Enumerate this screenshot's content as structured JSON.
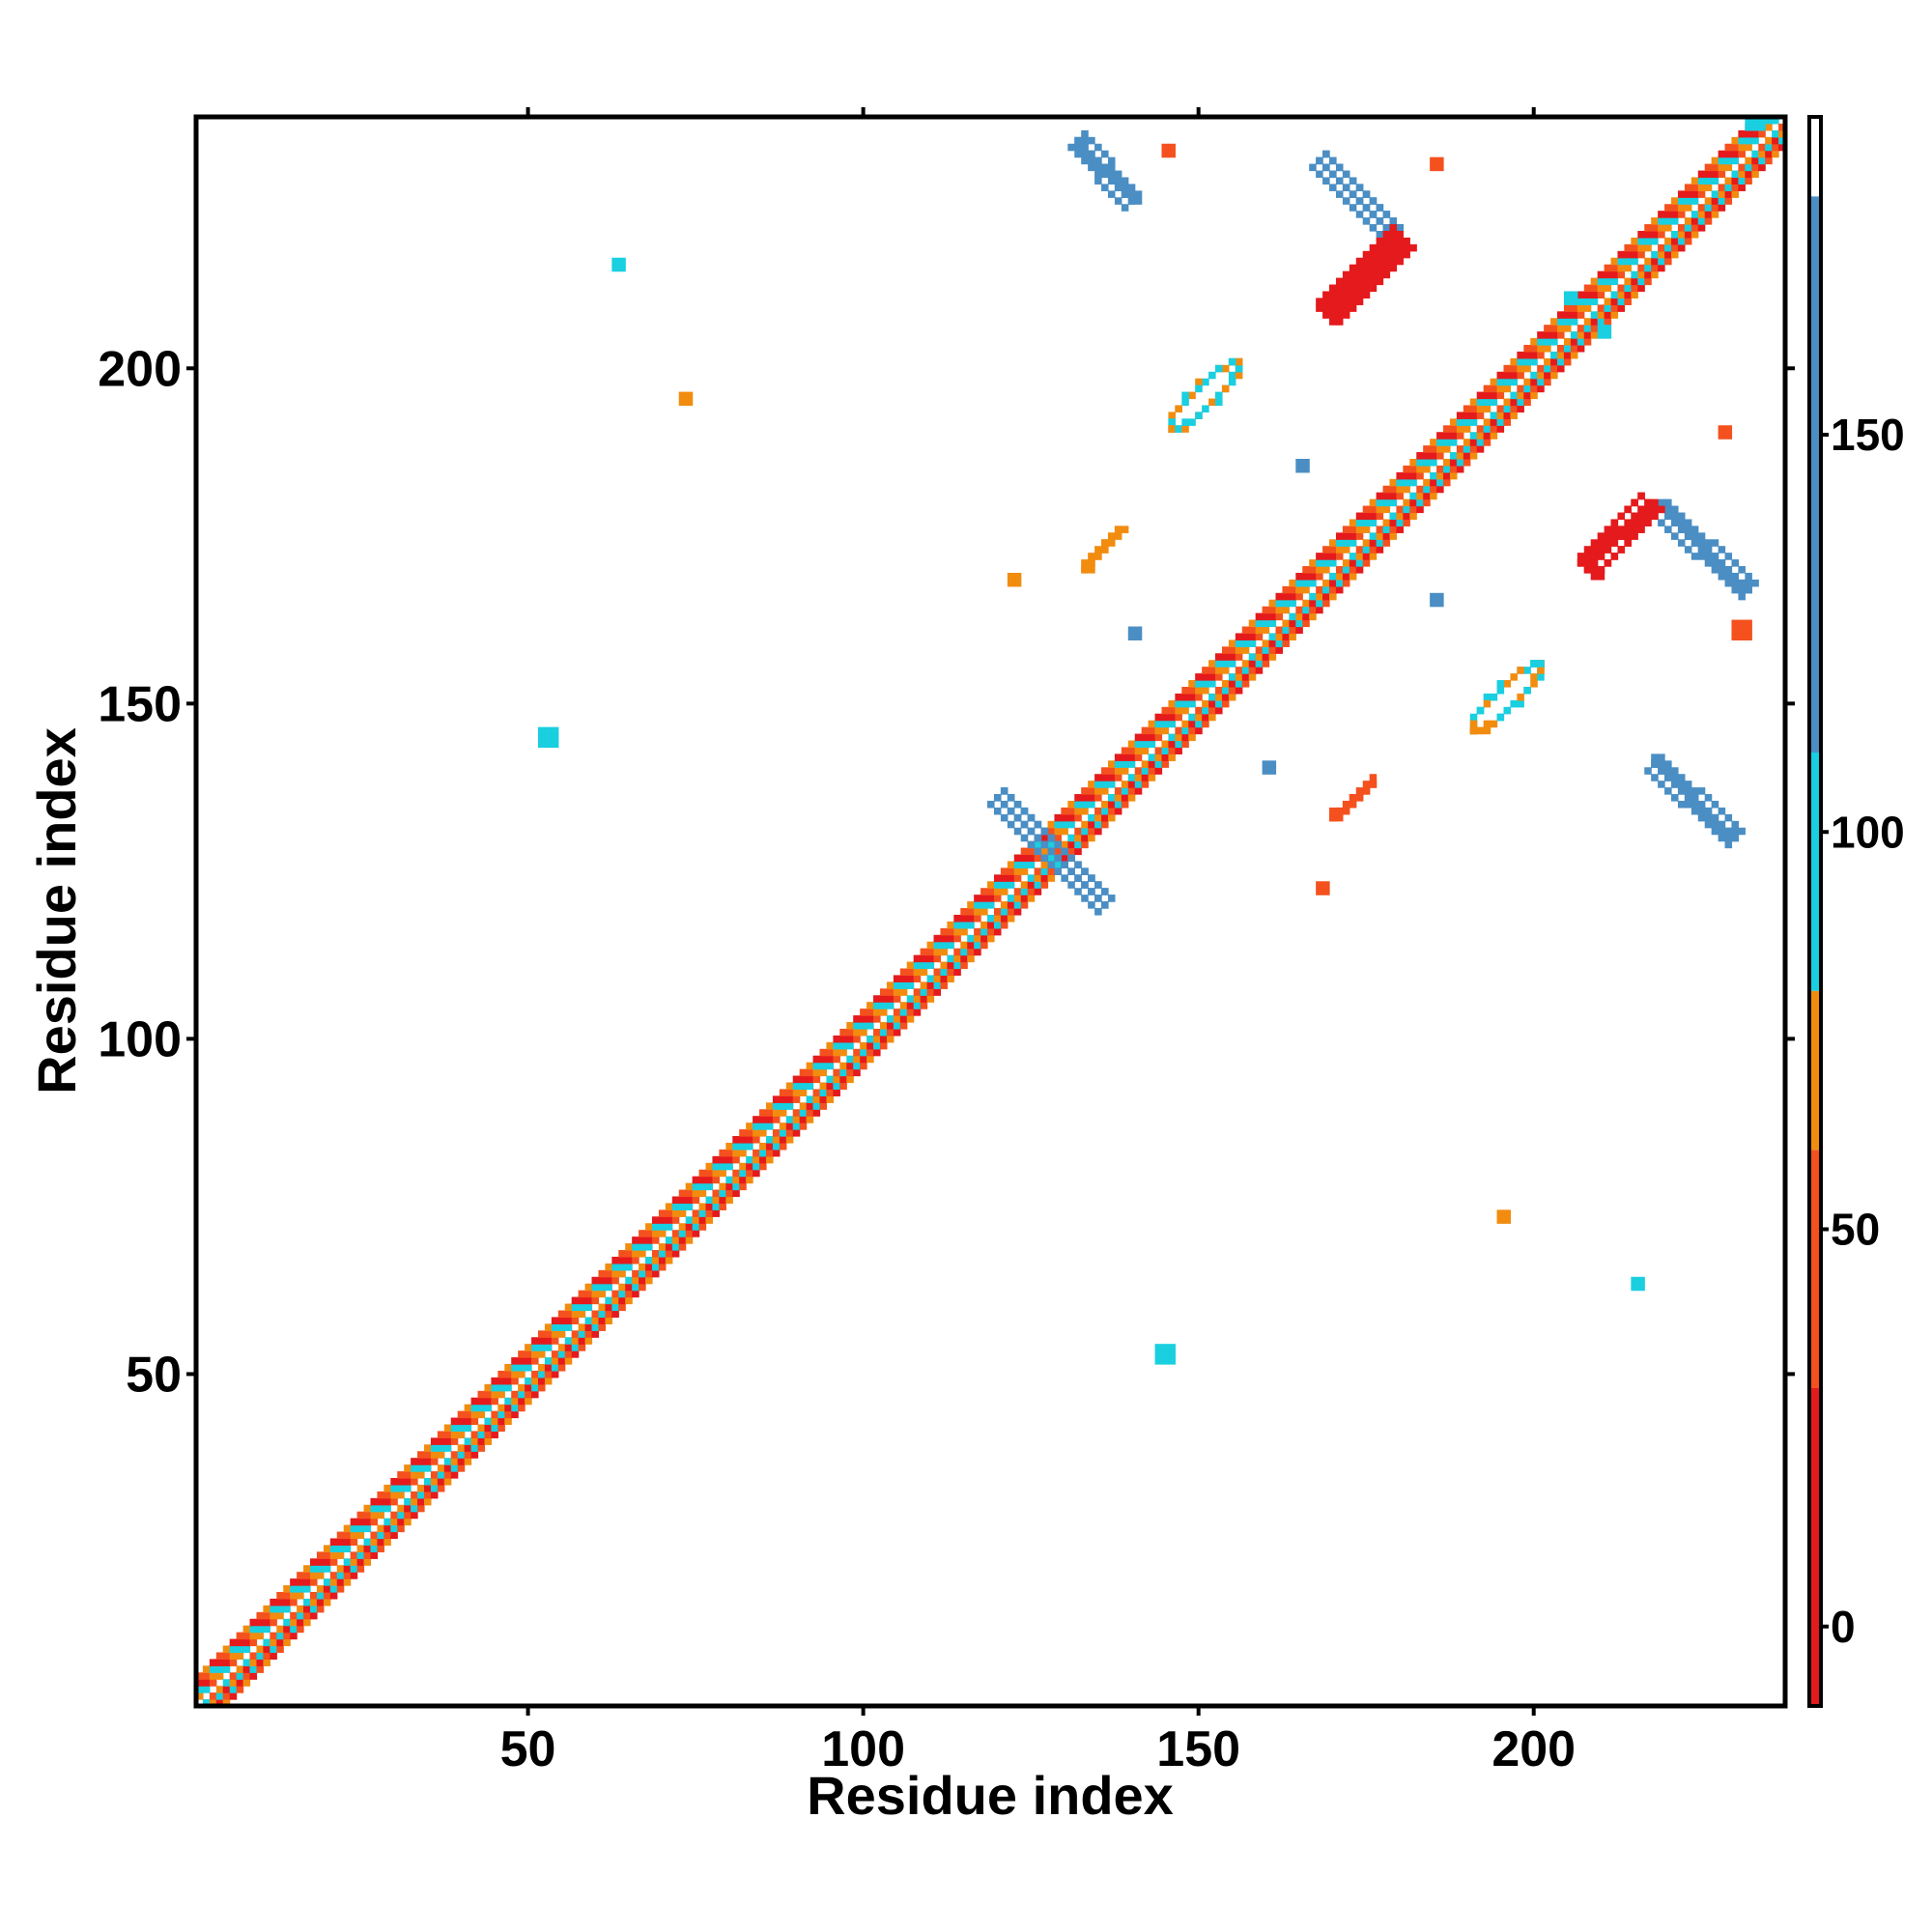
{
  "chart_data": {
    "type": "heatmap",
    "title": "",
    "xlabel": "Residue index",
    "ylabel": "Residue index",
    "xlim": [
      1,
      237
    ],
    "ylim": [
      1,
      237
    ],
    "x_ticks": [
      50,
      100,
      150,
      200
    ],
    "y_ticks": [
      50,
      100,
      150,
      200
    ],
    "grid": false,
    "legend": "colorbar right",
    "colorbar": {
      "range": [
        -10,
        190
      ],
      "ticks": [
        0,
        50,
        100,
        150
      ],
      "bins": [
        {
          "from": -10,
          "to": 30,
          "color": "#e41a1c"
        },
        {
          "from": 30,
          "to": 60,
          "color": "#f4511e"
        },
        {
          "from": 60,
          "to": 80,
          "color": "#f28c0f"
        },
        {
          "from": 80,
          "to": 110,
          "color": "#19cfe0"
        },
        {
          "from": 110,
          "to": 180,
          "color": "#4a8ec4"
        },
        {
          "from": 180,
          "to": 190,
          "color": "#ffffff"
        }
      ]
    },
    "features": [
      {
        "kind": "diagonal",
        "from": 1,
        "to": 237,
        "width": 4,
        "colors": [
          "#e41a1c",
          "#f4511e",
          "#f28c0f",
          "#19cfe0"
        ]
      },
      {
        "kind": "band",
        "from": [
          120,
          136
        ],
        "to": [
          136,
          120
        ],
        "width": 2.5,
        "color": "#4a8ec4"
      },
      {
        "kind": "band",
        "from": [
          132,
          234
        ],
        "to": [
          140,
          225
        ],
        "width": 2.5,
        "color": "#4a8ec4"
      },
      {
        "kind": "band",
        "from": [
          168,
          231
        ],
        "to": [
          179,
          220
        ],
        "width": 2.5,
        "color": "#4a8ec4"
      },
      {
        "kind": "band",
        "from": [
          219,
          179
        ],
        "to": [
          232,
          167
        ],
        "width": 2.5,
        "color": "#4a8ec4"
      },
      {
        "kind": "band",
        "from": [
          218,
          141
        ],
        "to": [
          230,
          130
        ],
        "width": 2.5,
        "color": "#4a8ec4"
      },
      {
        "kind": "band",
        "from": [
          169,
          208
        ],
        "to": [
          180,
          219
        ],
        "width": 3,
        "color": "#e41a1c"
      },
      {
        "kind": "band",
        "from": [
          208,
          170
        ],
        "to": [
          217,
          180
        ],
        "width": 3,
        "color": "#e41a1c"
      },
      {
        "kind": "band",
        "from": [
          170,
          133
        ],
        "to": [
          176,
          138
        ],
        "width": 1.5,
        "color": "#f4511e"
      },
      {
        "kind": "band",
        "from": [
          133,
          170
        ],
        "to": [
          138,
          176
        ],
        "width": 1.5,
        "color": "#f28c0f"
      },
      {
        "kind": "ring",
        "center": [
          151,
          196
        ],
        "width": 8,
        "color": "#f28c0f"
      },
      {
        "kind": "ring",
        "center": [
          196,
          151
        ],
        "width": 8,
        "color": "#f28c0f"
      },
      {
        "kind": "patch",
        "at": [
          52,
          144
        ],
        "size": 3,
        "color": "#19cfe0"
      },
      {
        "kind": "patch",
        "at": [
          144,
          52
        ],
        "size": 3,
        "color": "#19cfe0"
      },
      {
        "kind": "patch",
        "at": [
          63,
          215
        ],
        "size": 2,
        "color": "#19cfe0"
      },
      {
        "kind": "patch",
        "at": [
          215,
          63
        ],
        "size": 2,
        "color": "#19cfe0"
      },
      {
        "kind": "patch",
        "at": [
          73,
          195
        ],
        "size": 2,
        "color": "#f28c0f"
      },
      {
        "kind": "patch",
        "at": [
          195,
          73
        ],
        "size": 2,
        "color": "#f28c0f"
      },
      {
        "kind": "patch",
        "at": [
          122,
          168
        ],
        "size": 2,
        "color": "#f28c0f"
      },
      {
        "kind": "patch",
        "at": [
          168,
          122
        ],
        "size": 2,
        "color": "#f4511e"
      },
      {
        "kind": "patch",
        "at": [
          228,
          190
        ],
        "size": 2,
        "color": "#f4511e"
      },
      {
        "kind": "patch",
        "at": [
          230,
          160
        ],
        "size": 3,
        "color": "#f4511e"
      },
      {
        "kind": "patch",
        "at": [
          165,
          185
        ],
        "size": 2,
        "color": "#4a8ec4"
      },
      {
        "kind": "patch",
        "at": [
          185,
          165
        ],
        "size": 2,
        "color": "#4a8ec4"
      },
      {
        "kind": "patch",
        "at": [
          160,
          140
        ],
        "size": 2,
        "color": "#4a8ec4"
      },
      {
        "kind": "patch",
        "at": [
          140,
          160
        ],
        "size": 2,
        "color": "#4a8ec4"
      },
      {
        "kind": "patch",
        "at": [
          145,
          232
        ],
        "size": 2,
        "color": "#f4511e"
      },
      {
        "kind": "patch",
        "at": [
          185,
          230
        ],
        "size": 2,
        "color": "#f4511e"
      },
      {
        "kind": "patch",
        "at": [
          205,
          210
        ],
        "size": 2,
        "color": "#19cfe0"
      },
      {
        "kind": "patch",
        "at": [
          210,
          205
        ],
        "size": 2,
        "color": "#19cfe0"
      },
      {
        "kind": "patch",
        "at": [
          232,
          236
        ],
        "size": 3,
        "color": "#19cfe0"
      }
    ]
  }
}
